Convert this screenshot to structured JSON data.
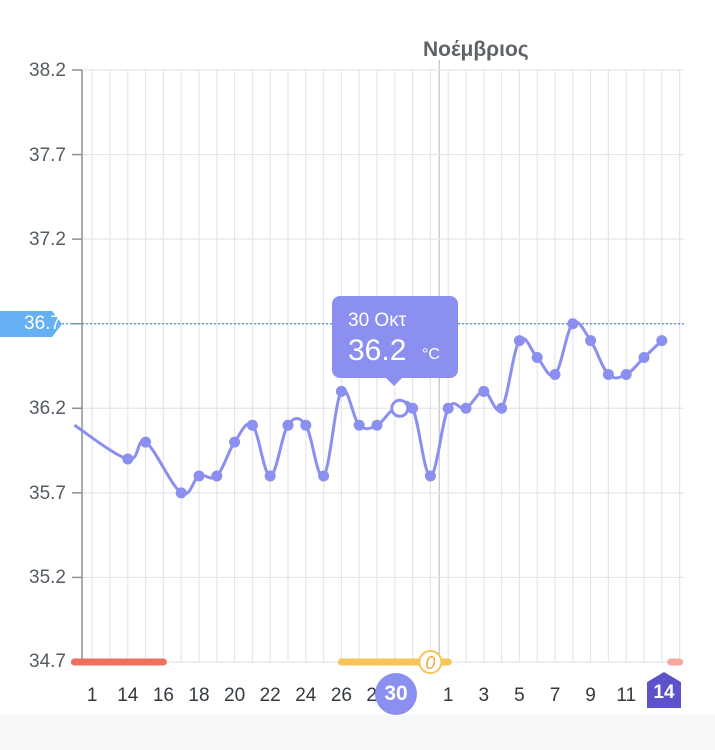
{
  "chart_data": {
    "type": "line",
    "title": "",
    "month_label": "Νοέμβριος",
    "ylim": [
      34.7,
      38.2
    ],
    "y_ticks": [
      "38.2",
      "37.7",
      "37.2",
      "36.7",
      "36.2",
      "35.7",
      "35.2",
      "34.7"
    ],
    "reference_line": {
      "value": 36.7,
      "label": "36.7"
    },
    "x_tick_labels": [
      {
        "day": 12,
        "label": "1"
      },
      {
        "day": 14,
        "label": "14"
      },
      {
        "day": 16,
        "label": "16"
      },
      {
        "day": 18,
        "label": "18"
      },
      {
        "day": 20,
        "label": "20"
      },
      {
        "day": 22,
        "label": "22"
      },
      {
        "day": 24,
        "label": "24"
      },
      {
        "day": 26,
        "label": "26"
      },
      {
        "day": 28,
        "label": "28"
      },
      {
        "day": 32,
        "label": "1"
      },
      {
        "day": 34,
        "label": "3"
      },
      {
        "day": 36,
        "label": "5"
      },
      {
        "day": 38,
        "label": "7"
      },
      {
        "day": 40,
        "label": "9"
      },
      {
        "day": 42,
        "label": "11"
      },
      {
        "day": 44,
        "label": "1"
      }
    ],
    "selected_day_label": "30",
    "today_label": "14",
    "series": [
      {
        "color": "#8b8ff0",
        "points": [
          {
            "day": 11,
            "value": 36.1
          },
          {
            "day": 14,
            "value": 35.9
          },
          {
            "day": 15,
            "value": 36.0
          },
          {
            "day": 17,
            "value": 35.7
          },
          {
            "day": 18,
            "value": 35.8
          },
          {
            "day": 19,
            "value": 35.8
          },
          {
            "day": 20,
            "value": 36.0
          },
          {
            "day": 21,
            "value": 36.1
          },
          {
            "day": 22,
            "value": 35.8
          },
          {
            "day": 23,
            "value": 36.1
          },
          {
            "day": 24,
            "value": 36.1
          },
          {
            "day": 25,
            "value": 35.8
          },
          {
            "day": 26,
            "value": 36.3
          },
          {
            "day": 27,
            "value": 36.1
          },
          {
            "day": 28,
            "value": 36.1
          },
          {
            "day": 29,
            "value": 36.2
          },
          {
            "day": 30,
            "value": 36.2
          },
          {
            "day": 31,
            "value": 35.8
          },
          {
            "day": 32,
            "value": 36.2
          },
          {
            "day": 33,
            "value": 36.2
          },
          {
            "day": 34,
            "value": 36.3
          },
          {
            "day": 35,
            "value": 36.2
          },
          {
            "day": 36,
            "value": 36.6
          },
          {
            "day": 37,
            "value": 36.5
          },
          {
            "day": 38,
            "value": 36.4
          },
          {
            "day": 39,
            "value": 36.7
          },
          {
            "day": 40,
            "value": 36.6
          },
          {
            "day": 41,
            "value": 36.4
          },
          {
            "day": 42,
            "value": 36.4
          },
          {
            "day": 43,
            "value": 36.5
          },
          {
            "day": 44,
            "value": 36.6
          }
        ]
      }
    ],
    "selected_point": {
      "day": 29,
      "value": 36.2
    },
    "tooltip": {
      "date": "30 Οκτ",
      "value": "36.2",
      "unit": "°C"
    },
    "phase_bars": [
      {
        "color": "#f0705f",
        "from_day": 11,
        "to_day": 16
      },
      {
        "color": "#f7c458",
        "from_day": 26,
        "to_day": 32
      },
      {
        "color": "#f4a8a0",
        "from_day": 44.5,
        "to_day": 45
      }
    ],
    "ovulation_marker": {
      "day": 31,
      "label": "0"
    }
  },
  "colors": {
    "line": "#8b8ff0",
    "reference_line": "#4a90e2",
    "reference_flag": "#64b0f2",
    "grid": "#e4e6ea",
    "today_badge": "#5c52c9"
  }
}
